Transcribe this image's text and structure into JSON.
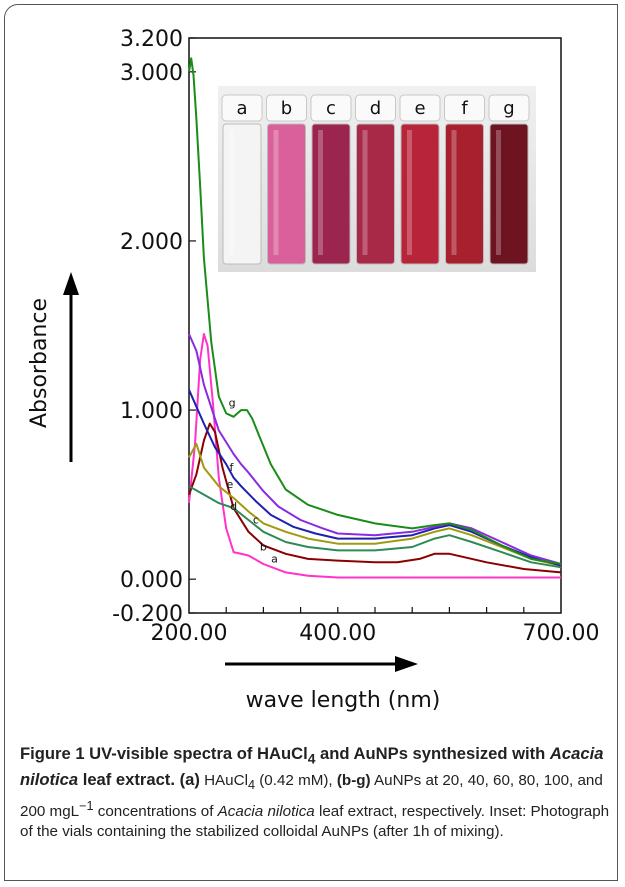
{
  "chart_data": {
    "type": "line",
    "title": "",
    "xlabel": "wave length (nm)",
    "ylabel": "Absorbance",
    "xlim": [
      200,
      700
    ],
    "ylim": [
      -0.2,
      3.2
    ],
    "x_ticks": [
      "200.00",
      "400.00",
      "700.00"
    ],
    "y_ticks": [
      "3.200",
      "3.000",
      "2.000",
      "1.000",
      "0.000",
      "-0.200"
    ],
    "grid": false,
    "legend": "none",
    "series": [
      {
        "name": "a",
        "color": "#ff33cc",
        "x": [
          200,
          208,
          215,
          220,
          225,
          232,
          240,
          250,
          260,
          280,
          300,
          330,
          360,
          400,
          450,
          500,
          550,
          600,
          650,
          700
        ],
        "y": [
          0.45,
          0.8,
          1.3,
          1.45,
          1.38,
          1.05,
          0.6,
          0.3,
          0.16,
          0.14,
          0.09,
          0.04,
          0.02,
          0.01,
          0.01,
          0.01,
          0.01,
          0.01,
          0.01,
          0.01
        ]
      },
      {
        "name": "b",
        "color": "#8b0000",
        "x": [
          200,
          210,
          220,
          228,
          235,
          245,
          260,
          280,
          300,
          330,
          360,
          400,
          450,
          480,
          510,
          530,
          550,
          570,
          600,
          650,
          700
        ],
        "y": [
          0.5,
          0.62,
          0.82,
          0.92,
          0.87,
          0.66,
          0.42,
          0.28,
          0.2,
          0.15,
          0.12,
          0.11,
          0.1,
          0.1,
          0.12,
          0.15,
          0.15,
          0.13,
          0.1,
          0.06,
          0.04
        ]
      },
      {
        "name": "c",
        "color": "#2e8b57",
        "x": [
          200,
          220,
          240,
          260,
          280,
          300,
          330,
          360,
          400,
          450,
          500,
          530,
          550,
          580,
          620,
          660,
          700
        ],
        "y": [
          0.55,
          0.5,
          0.45,
          0.42,
          0.35,
          0.28,
          0.22,
          0.19,
          0.17,
          0.17,
          0.19,
          0.24,
          0.26,
          0.22,
          0.16,
          0.1,
          0.07
        ]
      },
      {
        "name": "d",
        "color": "#a09a10",
        "x": [
          200,
          210,
          220,
          240,
          260,
          280,
          300,
          330,
          360,
          400,
          450,
          500,
          530,
          550,
          580,
          620,
          660,
          700
        ],
        "y": [
          0.72,
          0.8,
          0.66,
          0.55,
          0.48,
          0.4,
          0.33,
          0.28,
          0.24,
          0.21,
          0.21,
          0.24,
          0.28,
          0.3,
          0.26,
          0.19,
          0.12,
          0.08
        ]
      },
      {
        "name": "e",
        "color": "#1f1fb0",
        "x": [
          200,
          210,
          220,
          235,
          250,
          260,
          270,
          290,
          310,
          340,
          370,
          400,
          450,
          500,
          530,
          550,
          580,
          620,
          660,
          700
        ],
        "y": [
          1.12,
          1.02,
          0.92,
          0.78,
          0.68,
          0.6,
          0.55,
          0.46,
          0.38,
          0.31,
          0.27,
          0.24,
          0.24,
          0.26,
          0.3,
          0.32,
          0.28,
          0.2,
          0.13,
          0.08
        ]
      },
      {
        "name": "f",
        "color": "#8a2be2",
        "x": [
          200,
          210,
          220,
          240,
          260,
          270,
          280,
          300,
          320,
          350,
          380,
          400,
          450,
          500,
          530,
          550,
          580,
          620,
          660,
          700
        ],
        "y": [
          1.45,
          1.35,
          1.15,
          0.88,
          0.74,
          0.68,
          0.63,
          0.52,
          0.43,
          0.35,
          0.3,
          0.27,
          0.26,
          0.28,
          0.31,
          0.33,
          0.3,
          0.22,
          0.14,
          0.09
        ]
      },
      {
        "name": "g",
        "color": "#1a8c1a",
        "x": [
          200,
          203,
          206,
          210,
          215,
          220,
          230,
          240,
          250,
          260,
          265,
          270,
          278,
          285,
          295,
          310,
          330,
          360,
          400,
          450,
          500,
          530,
          550,
          580,
          620,
          660,
          700
        ],
        "y": [
          3.0,
          3.08,
          2.98,
          2.72,
          2.32,
          1.9,
          1.4,
          1.08,
          0.98,
          0.96,
          0.98,
          1.0,
          1.0,
          0.95,
          0.84,
          0.68,
          0.53,
          0.44,
          0.38,
          0.33,
          0.3,
          0.32,
          0.33,
          0.29,
          0.2,
          0.12,
          0.09
        ]
      }
    ],
    "curve_labels": [
      "a",
      "b",
      "c",
      "d",
      "e",
      "f",
      "g"
    ],
    "inset": {
      "vial_letters": [
        "a",
        "b",
        "c",
        "d",
        "e",
        "f",
        "g"
      ]
    }
  },
  "caption": {
    "figure_label": "Figure 1",
    "title_text": "UV-visible spectra of HAuCl",
    "title_sub": "4",
    "title_rest_1": " and AuNPs synthesized with ",
    "title_italic": "Acacia nilotica",
    "title_rest_2": " leaf extract.",
    "part_a_label": "(a)",
    "part_a_text": " HAuCl",
    "part_a_sub": "4",
    "part_a_rest": " (0.42 mM), ",
    "part_bg_label": "(b-g)",
    "part_bg_text": " AuNPs at 20, 40, 60, 80, 100, and 200 mgL",
    "part_bg_sup": "−1",
    "part_bg_rest": " concentrations of ",
    "species_italic": "Acacia nilotica",
    "body_rest": " leaf extract, respectively. Inset: Photograph of the vials containing the stabilized colloidal AuNPs (after 1h of mixing)."
  }
}
